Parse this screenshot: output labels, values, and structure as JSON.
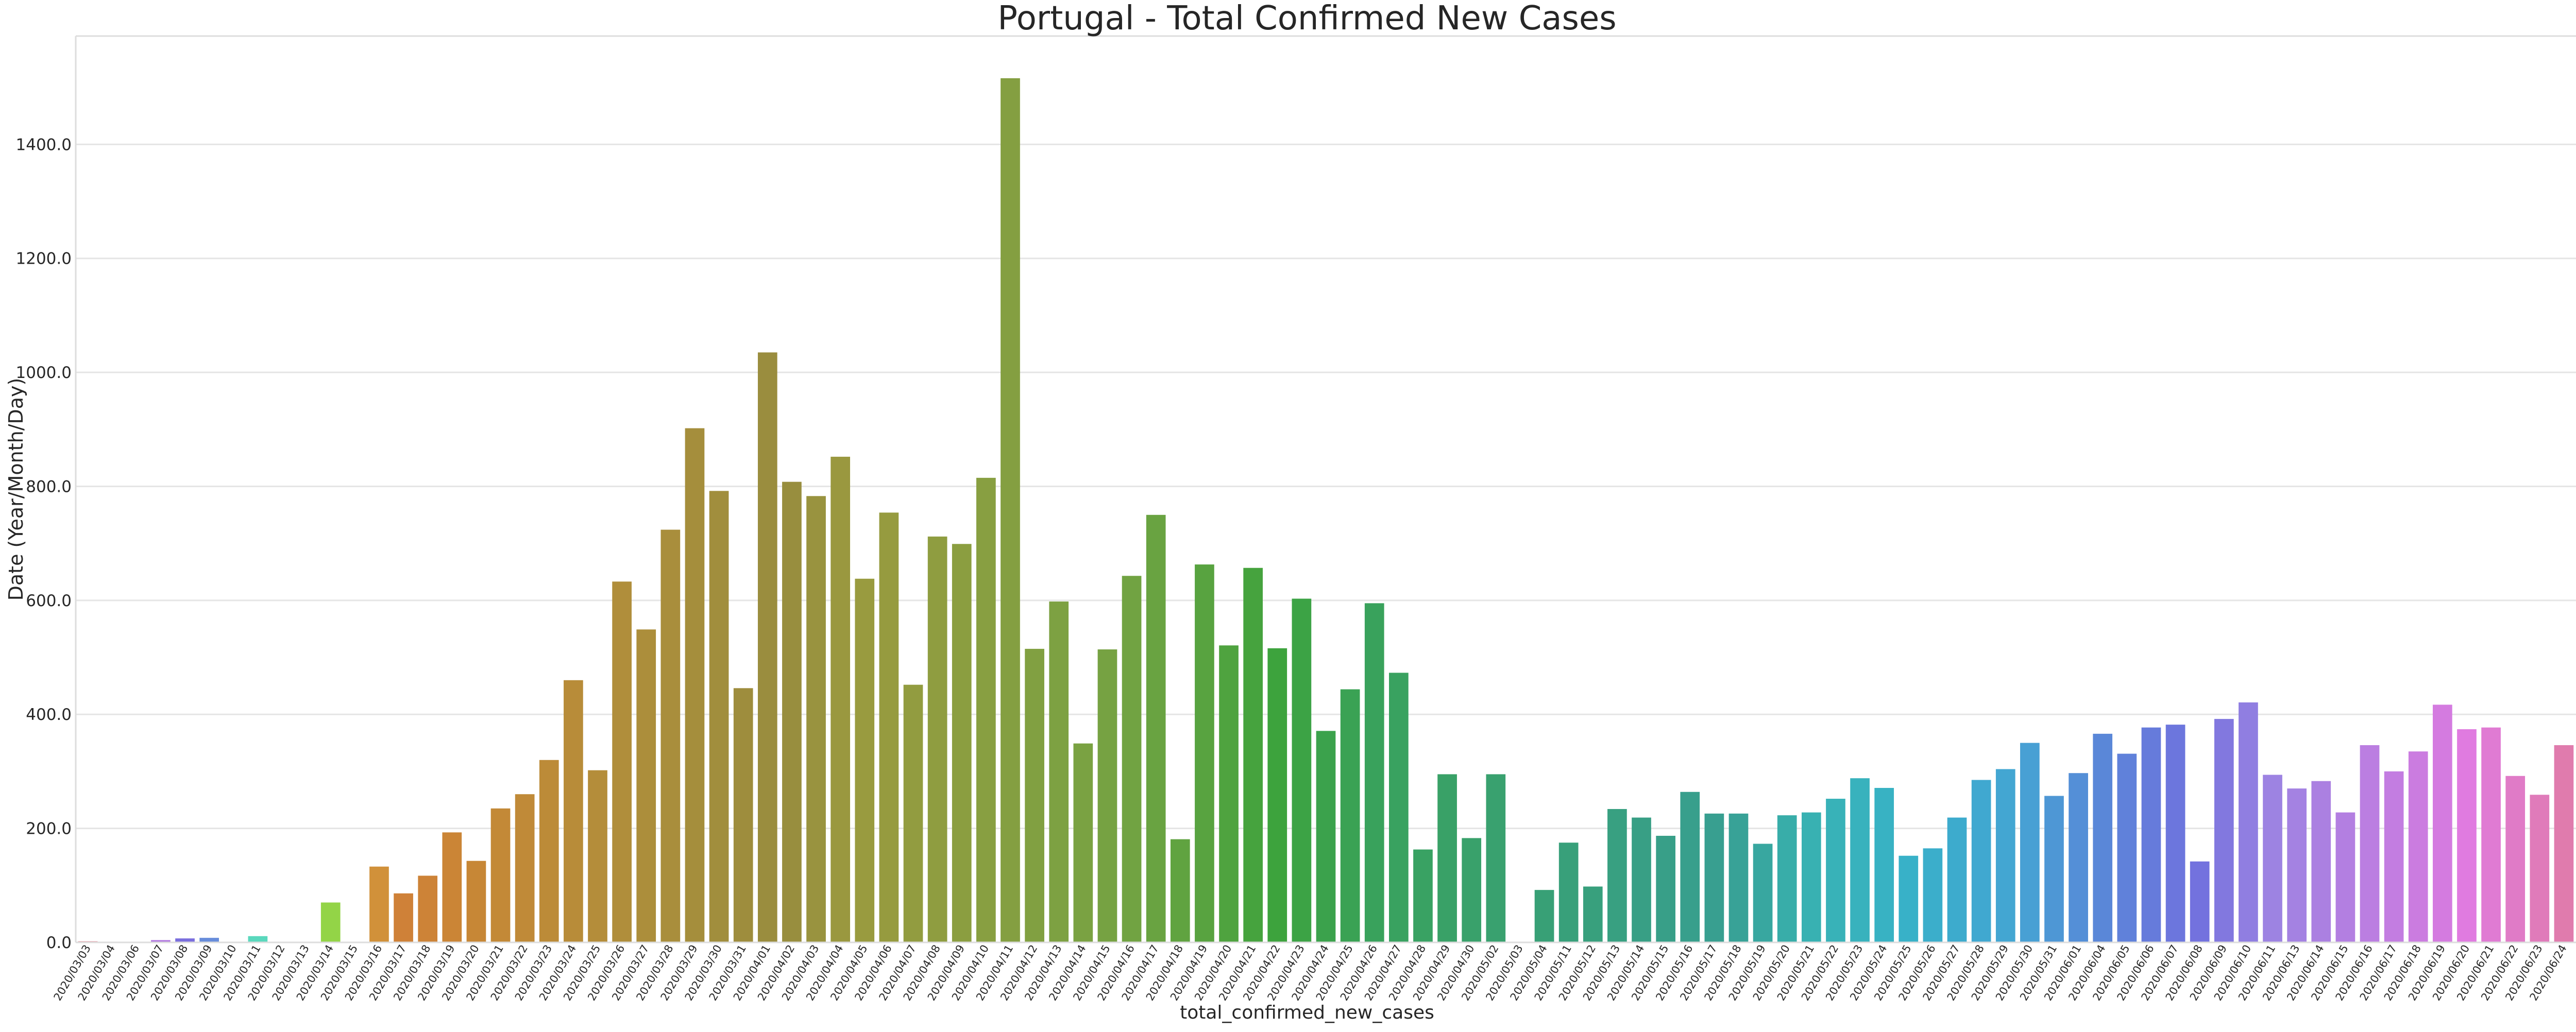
{
  "chart_data": {
    "type": "bar",
    "title": "Portugal - Total Confirmed New Cases",
    "xlabel": "total_confirmed_new_cases",
    "ylabel": "Date (Year/Month/Day)",
    "ylim": [
      0,
      1590
    ],
    "yticks": [
      0,
      200,
      400,
      600,
      800,
      1000,
      1200,
      1400
    ],
    "ytick_labels": [
      "0.0",
      "200.0",
      "400.0",
      "600.0",
      "800.0",
      "1000.0",
      "1200.0",
      "1400.0"
    ],
    "grid": true,
    "categories": [
      "2020/03/03",
      "2020/03/04",
      "2020/03/06",
      "2020/03/07",
      "2020/03/08",
      "2020/03/09",
      "2020/03/10",
      "2020/03/11",
      "2020/03/12",
      "2020/03/13",
      "2020/03/14",
      "2020/03/15",
      "2020/03/16",
      "2020/03/17",
      "2020/03/18",
      "2020/03/19",
      "2020/03/20",
      "2020/03/21",
      "2020/03/22",
      "2020/03/23",
      "2020/03/24",
      "2020/03/25",
      "2020/03/26",
      "2020/03/27",
      "2020/03/28",
      "2020/03/29",
      "2020/03/30",
      "2020/03/31",
      "2020/04/01",
      "2020/04/02",
      "2020/04/03",
      "2020/04/04",
      "2020/04/05",
      "2020/04/06",
      "2020/04/07",
      "2020/04/08",
      "2020/04/09",
      "2020/04/10",
      "2020/04/11",
      "2020/04/12",
      "2020/04/13",
      "2020/04/14",
      "2020/04/15",
      "2020/04/16",
      "2020/04/17",
      "2020/04/18",
      "2020/04/19",
      "2020/04/20",
      "2020/04/21",
      "2020/04/22",
      "2020/04/23",
      "2020/04/24",
      "2020/04/25",
      "2020/04/26",
      "2020/04/27",
      "2020/04/28",
      "2020/04/29",
      "2020/04/30",
      "2020/05/02",
      "2020/05/03",
      "2020/05/04",
      "2020/05/11",
      "2020/05/12",
      "2020/05/13",
      "2020/05/14",
      "2020/05/15",
      "2020/05/16",
      "2020/05/17",
      "2020/05/18",
      "2020/05/19",
      "2020/05/20",
      "2020/05/21",
      "2020/05/22",
      "2020/05/23",
      "2020/05/24",
      "2020/05/25",
      "2020/05/26",
      "2020/05/27",
      "2020/05/28",
      "2020/05/29",
      "2020/05/30",
      "2020/05/31",
      "2020/06/01",
      "2020/06/04",
      "2020/06/05",
      "2020/06/06",
      "2020/06/07",
      "2020/06/08",
      "2020/06/09",
      "2020/06/10",
      "2020/06/11",
      "2020/06/13",
      "2020/06/14",
      "2020/06/15",
      "2020/06/16",
      "2020/06/17",
      "2020/06/18",
      "2020/06/19",
      "2020/06/20",
      "2020/06/21",
      "2020/06/22",
      "2020/06/23",
      "2020/06/24"
    ],
    "values": [
      2,
      0,
      0,
      4,
      7,
      8,
      0,
      11,
      0,
      0,
      70,
      0,
      133,
      86,
      117,
      193,
      143,
      235,
      260,
      320,
      460,
      302,
      633,
      549,
      724,
      902,
      792,
      446,
      1035,
      808,
      783,
      852,
      638,
      754,
      452,
      712,
      699,
      815,
      1516,
      515,
      598,
      349,
      514,
      643,
      750,
      181,
      663,
      521,
      657,
      516,
      603,
      371,
      444,
      595,
      473,
      163,
      295,
      183,
      295,
      0,
      92,
      175,
      98,
      234,
      219,
      187,
      264,
      226,
      226,
      173,
      223,
      228,
      252,
      288,
      271,
      152,
      165,
      219,
      285,
      304,
      350,
      257,
      297,
      366,
      331,
      377,
      382,
      142,
      392,
      421,
      294,
      270,
      283,
      228,
      346,
      300,
      335,
      417,
      374,
      377,
      292,
      259,
      346
    ]
  }
}
